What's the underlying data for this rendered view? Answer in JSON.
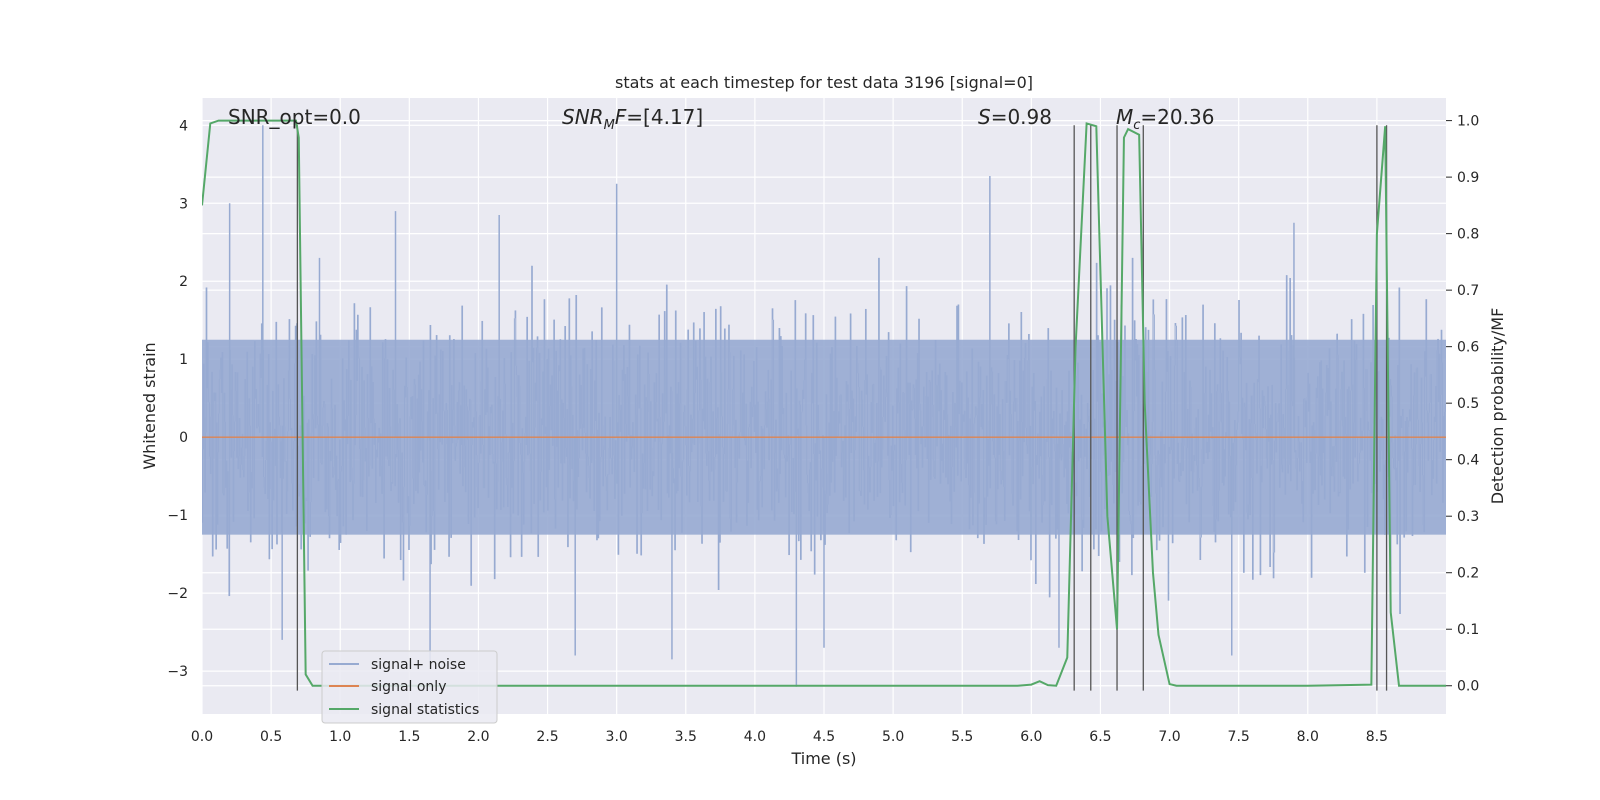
{
  "chart_data": {
    "type": "line",
    "title": "stats at each timestep for test data 3196 [signal=0]",
    "xlabel": "Time (s)",
    "ylabel_left": "Whitened strain",
    "ylabel_right": "Detection probability/MF",
    "xlim": [
      0.0,
      9.0
    ],
    "ylim_left": [
      -3.55,
      4.35
    ],
    "ylim_right": [
      -0.05,
      1.04
    ],
    "x_ticks": [
      "0.0",
      "0.5",
      "1.0",
      "1.5",
      "2.0",
      "2.5",
      "3.0",
      "3.5",
      "4.0",
      "4.5",
      "5.0",
      "5.5",
      "6.0",
      "6.5",
      "7.0",
      "7.5",
      "8.0",
      "8.5"
    ],
    "y_ticks_left": [
      "−3",
      "−2",
      "−1",
      "0",
      "1",
      "2",
      "3",
      "4"
    ],
    "y_ticks_right": [
      "0.0",
      "0.1",
      "0.2",
      "0.3",
      "0.4",
      "0.5",
      "0.6",
      "0.7",
      "0.8",
      "0.9",
      "1.0"
    ],
    "grid": true,
    "background": "#eaeaf2",
    "legend_position": "lower-left",
    "annotations": {
      "snr_opt": "SNR_opt=0.0",
      "snr_mf_base": "SNR",
      "snr_mf_sub": "M",
      "snr_mf_rest": "F=[4.17]",
      "s_var": "S",
      "s_rest": "=0.98",
      "mc_var": "M",
      "mc_sub": "c",
      "mc_rest": "=20.36"
    },
    "series": [
      {
        "name": "signal+ noise",
        "color": "#97aad1",
        "description": "noise band",
        "band_typical": 1.25,
        "peaks": [
          [
            0.2,
            3.0
          ],
          [
            0.44,
            4.0
          ],
          [
            0.58,
            -2.6
          ],
          [
            0.85,
            2.3
          ],
          [
            1.4,
            2.9
          ],
          [
            1.65,
            -2.9
          ],
          [
            2.15,
            2.85
          ],
          [
            2.7,
            -2.8
          ],
          [
            3.0,
            3.25
          ],
          [
            3.4,
            -2.85
          ],
          [
            4.3,
            -3.2
          ],
          [
            4.5,
            -2.7
          ],
          [
            5.7,
            3.35
          ],
          [
            6.2,
            -2.7
          ],
          [
            7.45,
            -2.8
          ],
          [
            7.9,
            2.75
          ],
          [
            8.6,
            -2.0
          ]
        ]
      },
      {
        "name": "signal only",
        "color": "#dd8452",
        "x": [
          0.0,
          9.0
        ],
        "y": [
          0.0,
          0.0
        ]
      },
      {
        "name": "signal statistics",
        "color": "#55a868",
        "axis": "right",
        "x": [
          0.0,
          0.06,
          0.12,
          0.5,
          0.62,
          0.68,
          0.7,
          0.75,
          0.8,
          1.0,
          2.0,
          3.0,
          4.0,
          5.0,
          5.9,
          6.0,
          6.06,
          6.12,
          6.18,
          6.26,
          6.32,
          6.4,
          6.47,
          6.55,
          6.62,
          6.67,
          6.7,
          6.78,
          6.82,
          6.88,
          6.92,
          7.0,
          7.05,
          7.15,
          8.0,
          8.46,
          8.5,
          8.56,
          8.6,
          8.66,
          8.7,
          9.0
        ],
        "y": [
          0.85,
          0.995,
          1.0,
          1.0,
          1.0,
          1.0,
          0.97,
          0.02,
          0.0,
          0.0,
          0.0,
          0.0,
          0.0,
          0.0,
          0.0,
          0.002,
          0.008,
          0.001,
          0.0,
          0.05,
          0.6,
          0.995,
          0.99,
          0.3,
          0.1,
          0.97,
          0.985,
          0.975,
          0.5,
          0.2,
          0.09,
          0.003,
          0.0,
          0.0,
          0.0,
          0.002,
          0.8,
          0.99,
          0.13,
          0.0,
          0.0,
          0.0
        ]
      }
    ],
    "vlines": [
      0.69,
      6.31,
      6.43,
      6.62,
      6.81,
      8.5,
      8.57
    ],
    "vline_color": "#555555"
  }
}
